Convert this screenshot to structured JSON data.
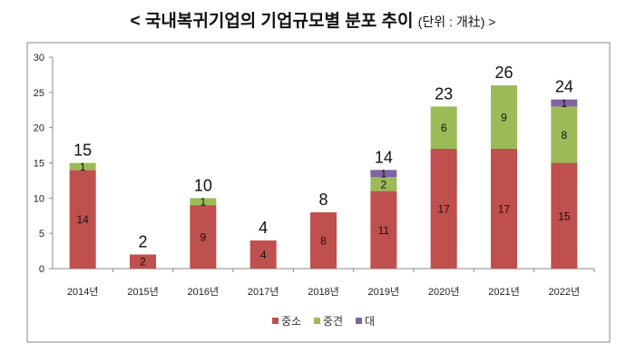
{
  "chart_data": {
    "type": "bar",
    "stacked": true,
    "title": "< 국내복귀기업의 기업규모별 분포 추이",
    "unit_label": "(단위 : 개社) >",
    "categories": [
      "2014년",
      "2015년",
      "2016년",
      "2017년",
      "2018년",
      "2019년",
      "2020년",
      "2021년",
      "2022년"
    ],
    "series": [
      {
        "name": "중소",
        "color": "#C0504D",
        "values": [
          14,
          2,
          9,
          4,
          8,
          11,
          17,
          17,
          15
        ]
      },
      {
        "name": "중견",
        "color": "#9BBB59",
        "values": [
          1,
          0,
          1,
          0,
          0,
          2,
          6,
          9,
          8
        ]
      },
      {
        "name": "대",
        "color": "#8064A2",
        "values": [
          0,
          0,
          0,
          0,
          0,
          1,
          0,
          0,
          1
        ]
      }
    ],
    "totals": [
      15,
      2,
      10,
      4,
      8,
      14,
      23,
      26,
      24
    ],
    "ylim": [
      0,
      30
    ],
    "yticks": [
      0,
      5,
      10,
      15,
      20,
      25,
      30
    ],
    "grid": false,
    "legend": "bottom"
  }
}
